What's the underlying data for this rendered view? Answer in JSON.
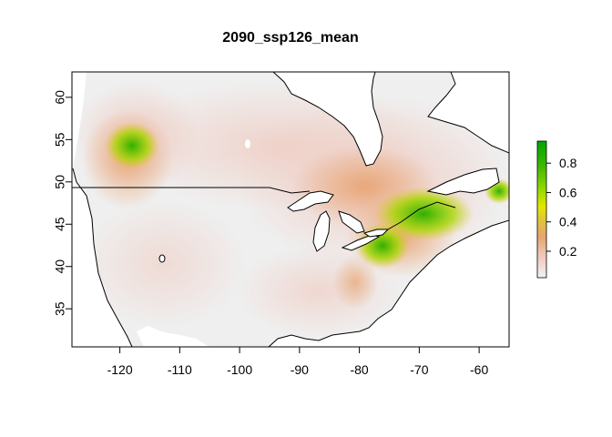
{
  "title": "2090_ssp126_mean",
  "map": {
    "xlim": [
      -128,
      -55
    ],
    "ylim": [
      30.5,
      63
    ],
    "x_ticks": [
      -120,
      -110,
      -100,
      -90,
      -80,
      -70,
      -60
    ],
    "y_ticks": [
      35,
      40,
      45,
      50,
      55,
      60
    ],
    "background_fill": "#efefef",
    "water_fill": "#ffffff",
    "border_color": "#000000"
  },
  "legend": {
    "type": "continuous-colorbar",
    "range": [
      0.02,
      0.95
    ],
    "ticks": [
      0.2,
      0.4,
      0.6,
      0.8
    ],
    "tick_labels": [
      "0.2",
      "0.4",
      "0.6",
      "0.8"
    ],
    "colors": [
      "#f2f2f2",
      "#f0cbbd",
      "#e8a472",
      "#ddc63a",
      "#e6e600",
      "#8fd900",
      "#3db800",
      "#00a600"
    ]
  }
}
